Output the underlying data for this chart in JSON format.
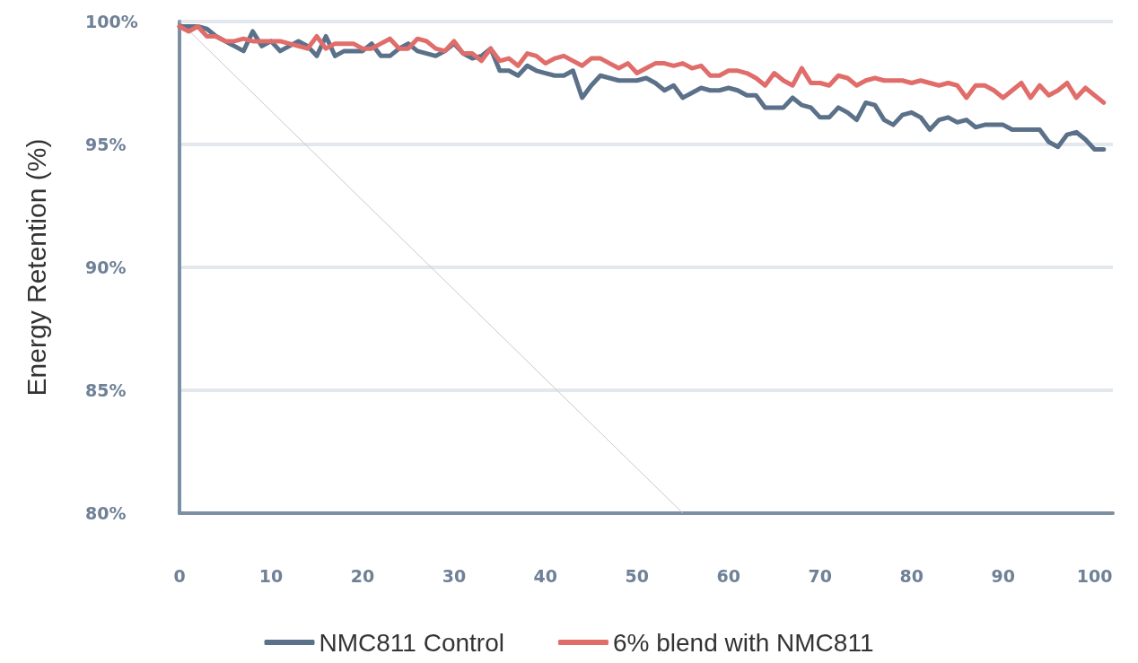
{
  "chart_data": {
    "type": "line",
    "ylabel": "Energy Retention (%)",
    "xlim": [
      0,
      102
    ],
    "xticks": [
      0,
      10,
      20,
      30,
      40,
      50,
      60,
      70,
      80,
      90,
      100
    ],
    "ylim": [
      80,
      100
    ],
    "yticks": [
      {
        "value": 80,
        "label": "80%"
      },
      {
        "value": 85,
        "label": "85%"
      },
      {
        "value": 90,
        "label": "90%"
      },
      {
        "value": 95,
        "label": "95%"
      },
      {
        "value": 100,
        "label": "100%"
      }
    ],
    "grid": "y",
    "legend": "bottom",
    "marker": "none",
    "line_style": "solid",
    "x": [
      0,
      1,
      2,
      3,
      4,
      5,
      6,
      7,
      8,
      9,
      10,
      11,
      12,
      13,
      14,
      15,
      16,
      17,
      18,
      19,
      20,
      21,
      22,
      23,
      24,
      25,
      26,
      27,
      28,
      29,
      30,
      31,
      32,
      33,
      34,
      35,
      36,
      37,
      38,
      39,
      40,
      41,
      42,
      43,
      44,
      45,
      46,
      47,
      48,
      49,
      50,
      51,
      52,
      53,
      54,
      55,
      56,
      57,
      58,
      59,
      60,
      61,
      62,
      63,
      64,
      65,
      66,
      67,
      68,
      69,
      70,
      71,
      72,
      73,
      74,
      75,
      76,
      77,
      78,
      79,
      80,
      81,
      82,
      83,
      84,
      85,
      86,
      87,
      88,
      89,
      90,
      91,
      92,
      93,
      94,
      95,
      96,
      97,
      98,
      99,
      100,
      101
    ],
    "series": [
      {
        "name": "NMC811 Control",
        "color": "#5b7189",
        "values": [
          99.8,
          99.8,
          99.8,
          99.7,
          99.4,
          99.2,
          99.0,
          98.8,
          99.6,
          99.0,
          99.2,
          98.8,
          99.0,
          99.2,
          99.0,
          98.6,
          99.4,
          98.6,
          98.8,
          98.8,
          98.8,
          99.1,
          98.6,
          98.6,
          98.9,
          99.1,
          98.8,
          98.7,
          98.6,
          98.8,
          99.1,
          98.7,
          98.5,
          98.6,
          98.9,
          98.0,
          98.0,
          97.8,
          98.2,
          98.0,
          97.9,
          97.8,
          97.8,
          98.0,
          96.9,
          97.4,
          97.8,
          97.7,
          97.6,
          97.6,
          97.6,
          97.7,
          97.5,
          97.2,
          97.4,
          96.9,
          97.1,
          97.3,
          97.2,
          97.2,
          97.3,
          97.2,
          97.0,
          97.0,
          96.5,
          96.5,
          96.5,
          96.9,
          96.6,
          96.5,
          96.1,
          96.1,
          96.5,
          96.3,
          96.0,
          96.7,
          96.6,
          96.0,
          95.8,
          96.2,
          96.3,
          96.1,
          95.6,
          96.0,
          96.1,
          95.9,
          96.0,
          95.7,
          95.8,
          95.8,
          95.8,
          95.6,
          95.6,
          95.6,
          95.6,
          95.1,
          94.9,
          95.4,
          95.5,
          95.2,
          94.8,
          94.8
        ]
      },
      {
        "name": "6% blend with NMC811",
        "color": "#e06d6a",
        "values": [
          99.8,
          99.6,
          99.8,
          99.4,
          99.4,
          99.2,
          99.2,
          99.3,
          99.2,
          99.2,
          99.2,
          99.2,
          99.1,
          99.0,
          98.9,
          99.4,
          98.9,
          99.1,
          99.1,
          99.1,
          98.9,
          98.9,
          99.1,
          99.3,
          98.9,
          98.9,
          99.3,
          99.2,
          98.9,
          98.8,
          99.2,
          98.7,
          98.7,
          98.4,
          98.9,
          98.4,
          98.5,
          98.2,
          98.7,
          98.6,
          98.3,
          98.5,
          98.6,
          98.4,
          98.2,
          98.5,
          98.5,
          98.3,
          98.1,
          98.3,
          97.9,
          98.1,
          98.3,
          98.3,
          98.2,
          98.3,
          98.1,
          98.2,
          97.8,
          97.8,
          98.0,
          98.0,
          97.9,
          97.7,
          97.4,
          97.9,
          97.6,
          97.4,
          98.1,
          97.5,
          97.5,
          97.4,
          97.8,
          97.7,
          97.4,
          97.6,
          97.7,
          97.6,
          97.6,
          97.6,
          97.5,
          97.6,
          97.5,
          97.4,
          97.5,
          97.4,
          96.9,
          97.4,
          97.4,
          97.2,
          96.9,
          97.2,
          97.5,
          96.9,
          97.4,
          97.0,
          97.2,
          97.5,
          96.9,
          97.3,
          97.0,
          96.7
        ]
      },
      {
        "color": "#c8c8c8",
        "x": [
          0,
          55
        ],
        "values": [
          100,
          80
        ]
      }
    ]
  }
}
